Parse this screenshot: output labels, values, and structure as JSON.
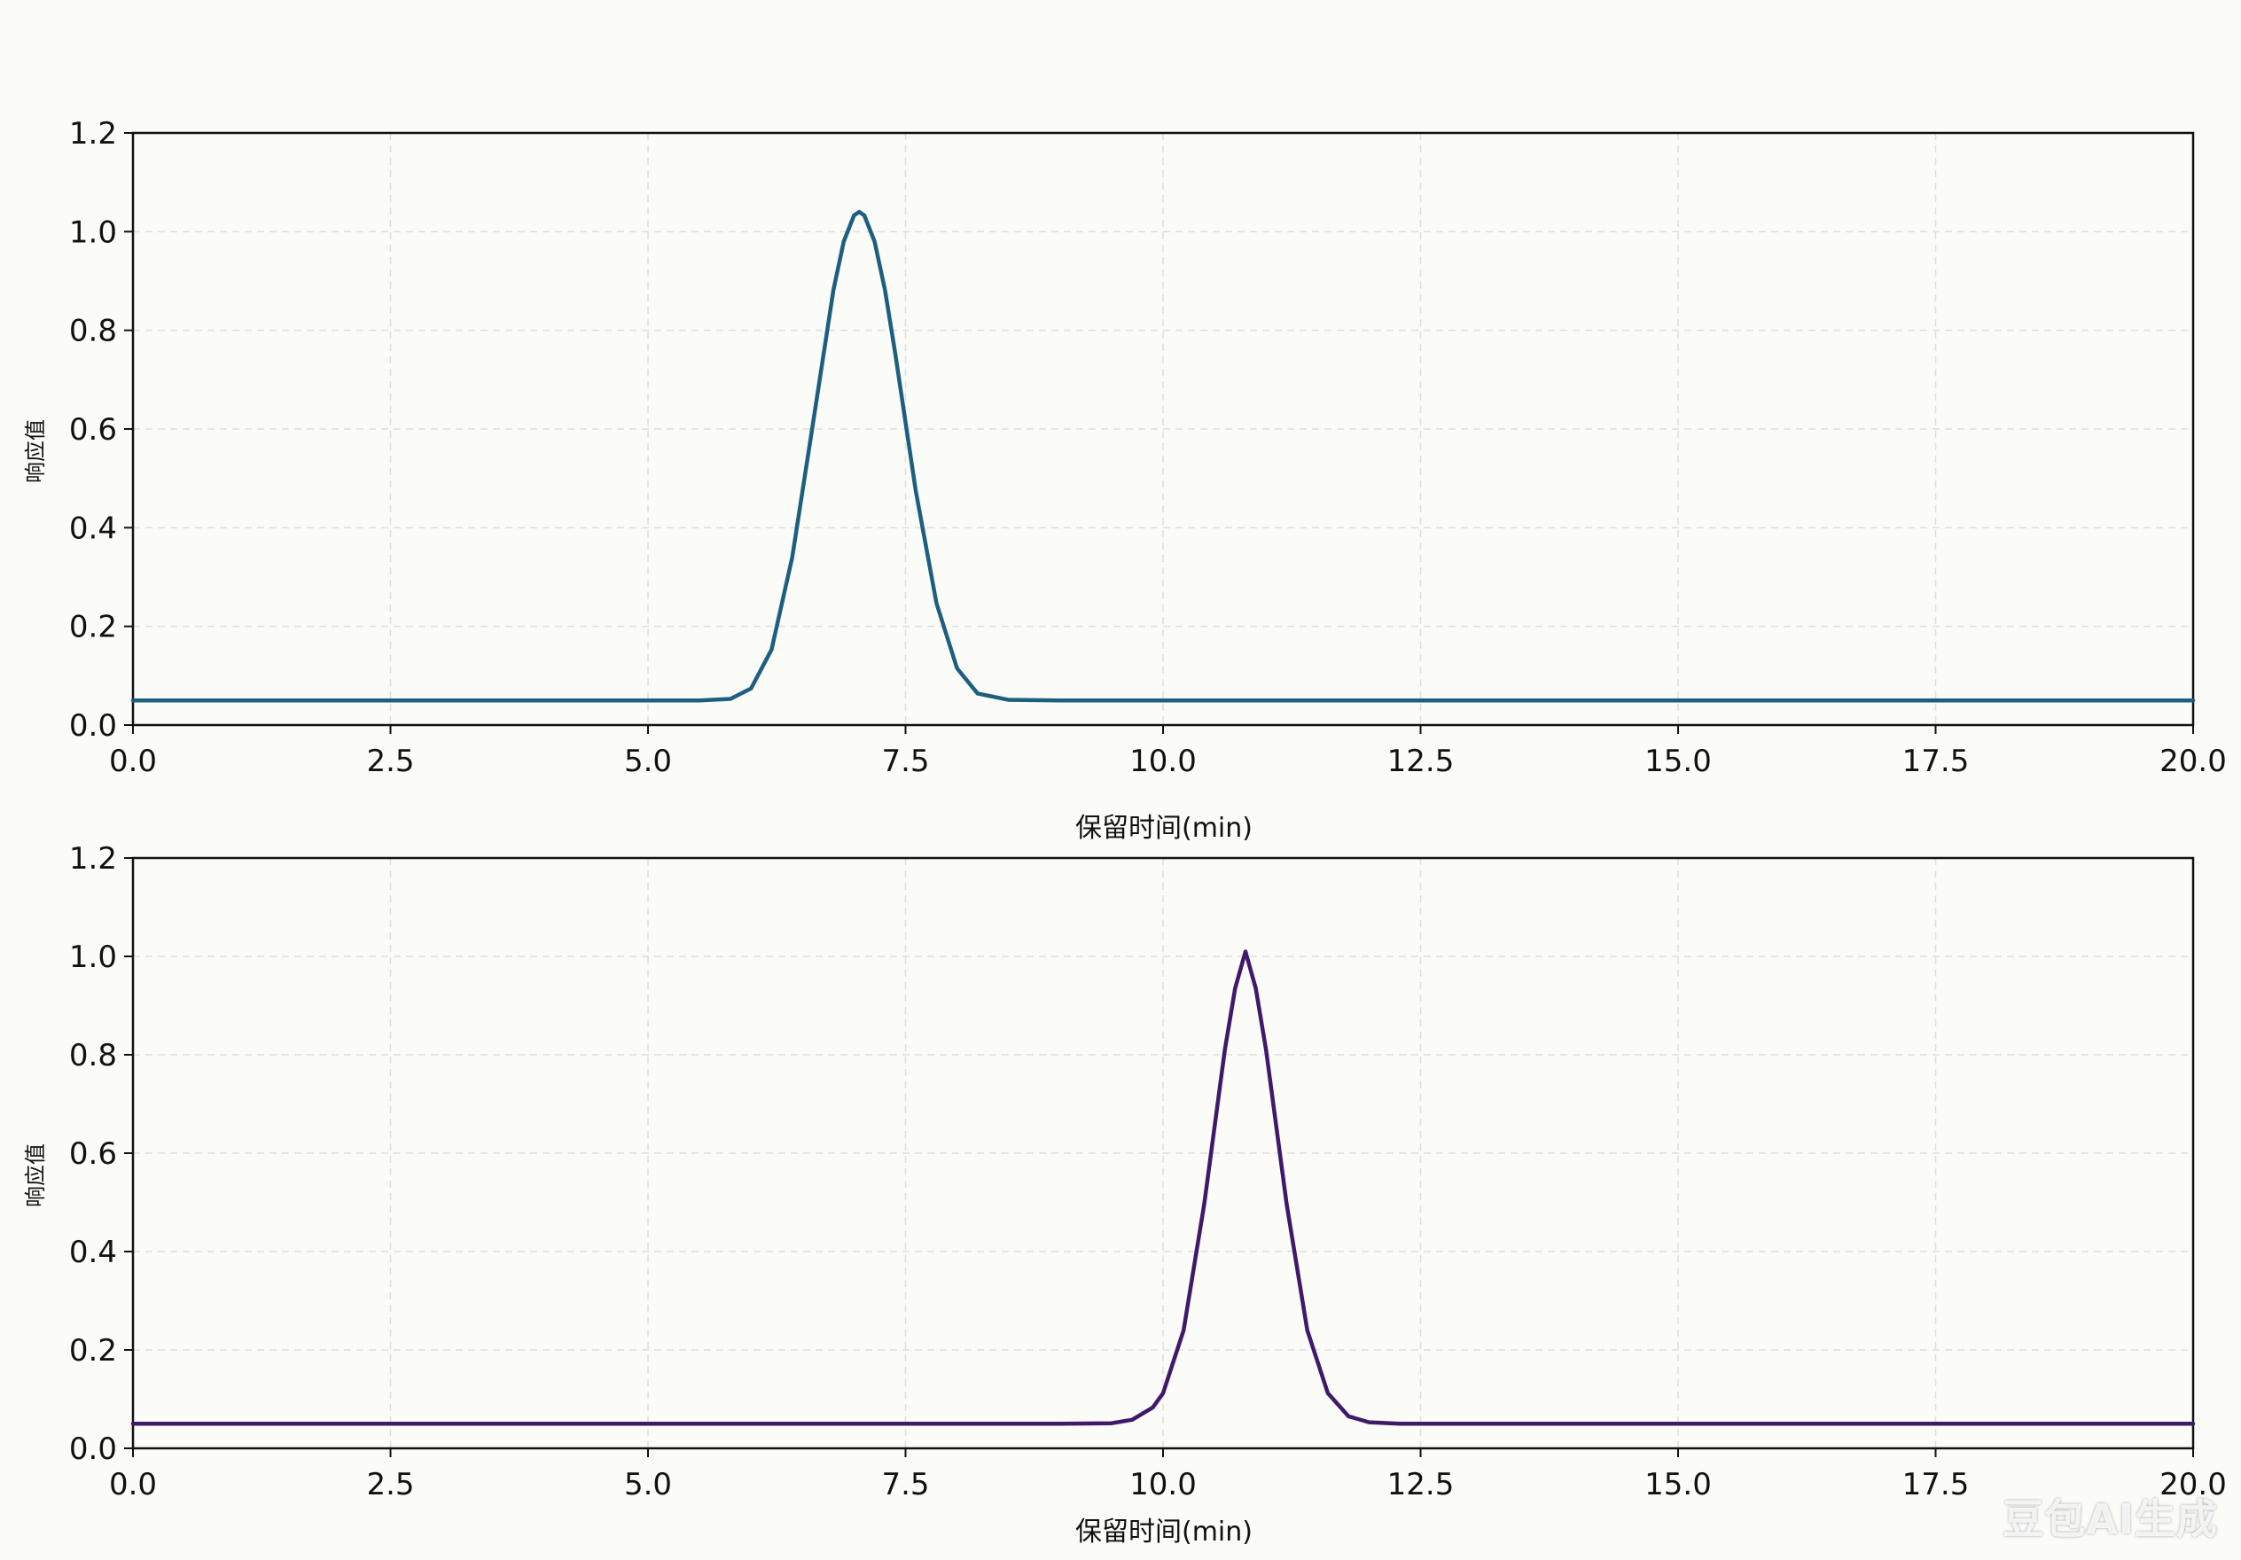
{
  "chart_data": [
    {
      "type": "line",
      "xlabel": "保留时间(min)",
      "ylabel": "响应值",
      "xlim": [
        0,
        20
      ],
      "ylim": [
        0,
        1.2
      ],
      "xticks": [
        "0.0",
        "2.5",
        "5.0",
        "7.5",
        "10.0",
        "12.5",
        "15.0",
        "17.5",
        "20.0"
      ],
      "yticks": [
        "0.0",
        "0.2",
        "0.4",
        "0.6",
        "0.8",
        "1.0",
        "1.2"
      ],
      "grid": true,
      "color": "#1e5f80",
      "series": [
        {
          "x": [
            0,
            1,
            2,
            3,
            4,
            5,
            5.5,
            5.8,
            6.0,
            6.2,
            6.4,
            6.6,
            6.8,
            6.9,
            7.0,
            7.05,
            7.1,
            7.2,
            7.3,
            7.4,
            7.6,
            7.8,
            8.0,
            8.2,
            8.5,
            9,
            10,
            12,
            14,
            16,
            18,
            20
          ],
          "y": [
            0.05,
            0.05,
            0.05,
            0.05,
            0.05,
            0.05,
            0.05,
            0.053,
            0.074,
            0.153,
            0.34,
            0.609,
            0.882,
            0.98,
            1.033,
            1.04,
            1.033,
            0.98,
            0.882,
            0.753,
            0.474,
            0.247,
            0.115,
            0.064,
            0.051,
            0.05,
            0.05,
            0.05,
            0.05,
            0.05,
            0.05,
            0.05
          ]
        }
      ]
    },
    {
      "type": "line",
      "xlabel": "保留时间(min)",
      "ylabel": "响应值",
      "xlim": [
        0,
        20
      ],
      "ylim": [
        0,
        1.2
      ],
      "xticks": [
        "0.0",
        "2.5",
        "5.0",
        "7.5",
        "10.0",
        "12.5",
        "15.0",
        "17.5",
        "20.0"
      ],
      "yticks": [
        "0.0",
        "0.2",
        "0.4",
        "0.6",
        "0.8",
        "1.0",
        "1.2"
      ],
      "grid": true,
      "color": "#40196b",
      "series": [
        {
          "x": [
            0,
            2,
            4,
            6,
            8,
            9,
            9.5,
            9.7,
            9.9,
            10.0,
            10.2,
            10.4,
            10.6,
            10.7,
            10.8,
            10.9,
            11.0,
            11.2,
            11.4,
            11.6,
            11.8,
            12.0,
            12.3,
            13,
            15,
            17,
            20
          ],
          "y": [
            0.05,
            0.05,
            0.05,
            0.05,
            0.05,
            0.05,
            0.051,
            0.058,
            0.083,
            0.112,
            0.24,
            0.497,
            0.81,
            0.935,
            1.01,
            0.935,
            0.81,
            0.497,
            0.24,
            0.112,
            0.065,
            0.053,
            0.05,
            0.05,
            0.05,
            0.05,
            0.05
          ]
        }
      ]
    }
  ],
  "watermark": "豆包AI生成"
}
